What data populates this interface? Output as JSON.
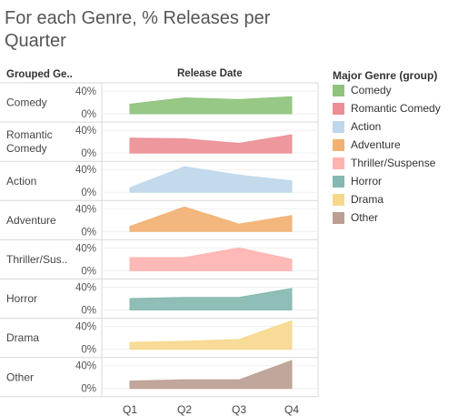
{
  "title": "For each Genre, % Releases per Quarter",
  "row_header": "Grouped Ge..",
  "column_header": "Release Date",
  "legend": {
    "title": "Major Genre (group)",
    "items": [
      {
        "label": "Comedy",
        "color": "#8fc37c"
      },
      {
        "label": "Romantic Comedy",
        "color": "#eb8f95"
      },
      {
        "label": "Action",
        "color": "#bed7ec"
      },
      {
        "label": "Adventure",
        "color": "#f2b172"
      },
      {
        "label": "Thriller/Suspense",
        "color": "#ffb3b0"
      },
      {
        "label": "Horror",
        "color": "#84b9b0"
      },
      {
        "label": "Drama",
        "color": "#f6d88d"
      },
      {
        "label": "Other",
        "color": "#bc9f92"
      }
    ]
  },
  "chart_data": {
    "type": "area",
    "title": "For each Genre, % Releases per Quarter",
    "xlabel": "Release Date",
    "ylabel": "",
    "categories": [
      "Q1",
      "Q2",
      "Q3",
      "Q4"
    ],
    "y_ticks": [
      "40%",
      "0%"
    ],
    "ylim": [
      0,
      50
    ],
    "grid": true,
    "legend_position": "right",
    "series": [
      {
        "name": "Comedy",
        "row_label": [
          "Comedy"
        ],
        "color": "#8fc37c",
        "values": [
          17,
          28,
          25,
          30
        ]
      },
      {
        "name": "Romantic Comedy",
        "row_label": [
          "Romantic",
          "Comedy"
        ],
        "color": "#eb8f95",
        "values": [
          26,
          25,
          17,
          32
        ]
      },
      {
        "name": "Action",
        "row_label": [
          "Action"
        ],
        "color": "#bed7ec",
        "values": [
          8,
          45,
          30,
          20
        ]
      },
      {
        "name": "Adventure",
        "row_label": [
          "Adventure"
        ],
        "color": "#f2b172",
        "values": [
          9,
          43,
          13,
          28
        ]
      },
      {
        "name": "Thriller/Suspense",
        "row_label": [
          "Thriller/Sus.."
        ],
        "color": "#ffb3b0",
        "values": [
          23,
          23,
          40,
          20
        ]
      },
      {
        "name": "Horror",
        "row_label": [
          "Horror"
        ],
        "color": "#84b9b0",
        "values": [
          20,
          22,
          22,
          38
        ]
      },
      {
        "name": "Drama",
        "row_label": [
          "Drama"
        ],
        "color": "#f6d88d",
        "values": [
          12,
          14,
          17,
          50
        ]
      },
      {
        "name": "Other",
        "row_label": [
          "Other"
        ],
        "color": "#bc9f92",
        "values": [
          13,
          15,
          15,
          49
        ]
      }
    ]
  }
}
